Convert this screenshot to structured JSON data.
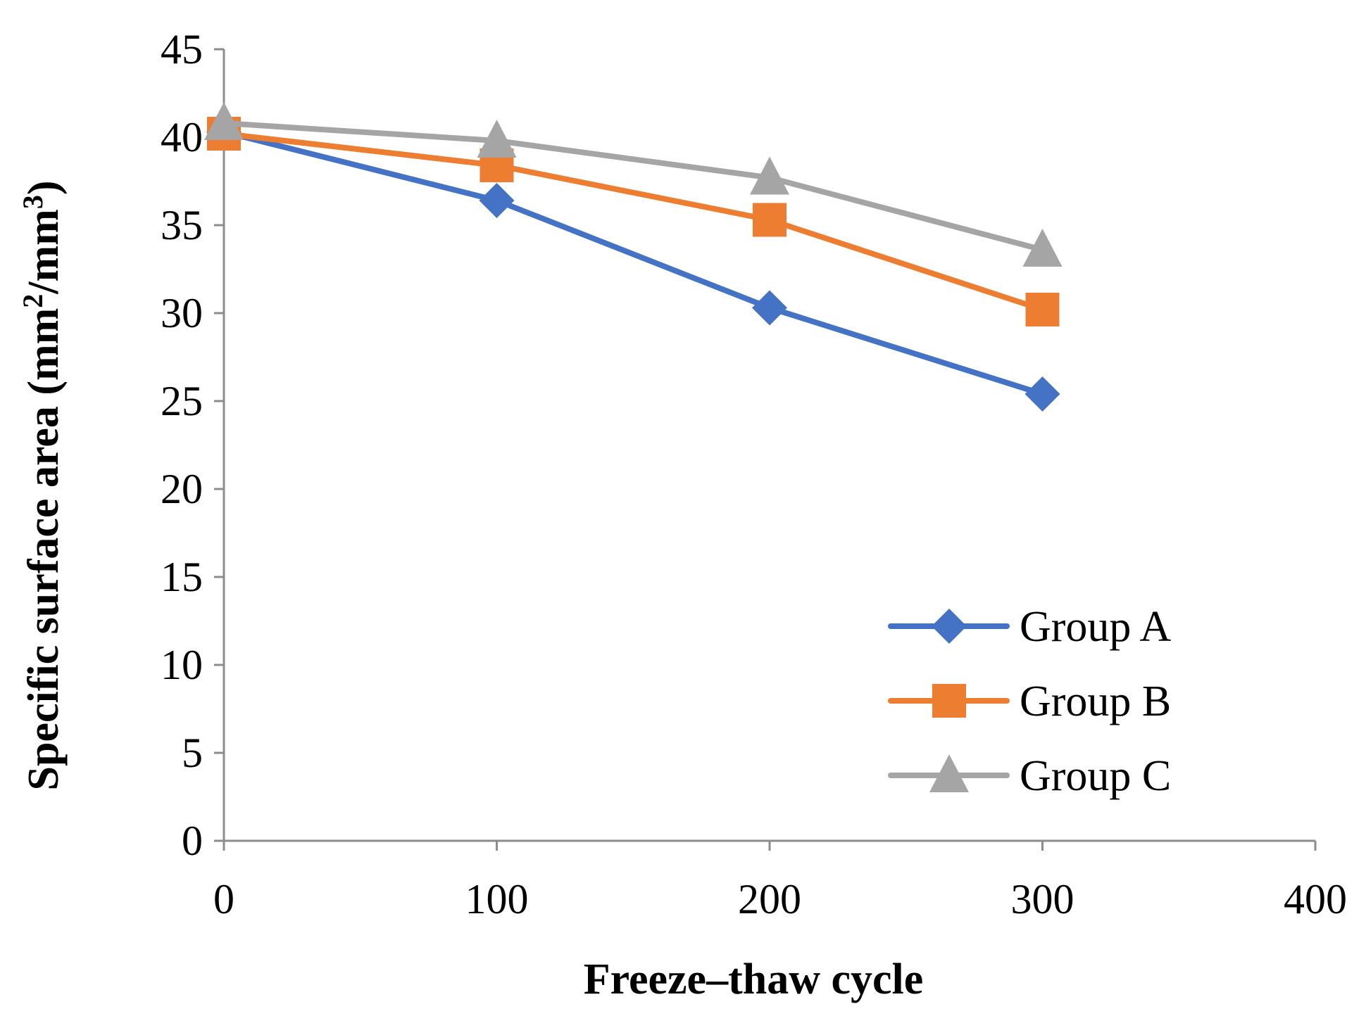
{
  "chart_data": {
    "type": "line",
    "title": "",
    "xlabel": "Freeze–thaw cycle",
    "ylabel_main": "Specific surface area (mm",
    "ylabel_sup1": "2",
    "ylabel_mid": "/mm",
    "ylabel_sup2": "3",
    "ylabel_end": ")",
    "xlim": [
      0,
      400
    ],
    "ylim": [
      0,
      45
    ],
    "xticks": [
      0,
      100,
      200,
      300,
      400
    ],
    "yticks": [
      0,
      5,
      10,
      15,
      20,
      25,
      30,
      35,
      40,
      45
    ],
    "xtick_labels": [
      "0",
      "100",
      "200",
      "300",
      "400"
    ],
    "ytick_labels": [
      "0",
      "5",
      "10",
      "15",
      "20",
      "25",
      "30",
      "35",
      "40",
      "45"
    ],
    "x": [
      0,
      100,
      200,
      300
    ],
    "grid": false,
    "legend_position": "bottom-right",
    "series": [
      {
        "name": "Group A",
        "marker": "diamond",
        "color": "#4472C4",
        "values": [
          40.3,
          36.4,
          30.3,
          25.4
        ]
      },
      {
        "name": "Group B",
        "marker": "square",
        "color": "#ED7D31",
        "values": [
          40.2,
          38.4,
          35.3,
          30.2
        ]
      },
      {
        "name": "Group C",
        "marker": "triangle",
        "color": "#A5A5A5",
        "values": [
          40.8,
          39.8,
          37.7,
          33.6
        ]
      }
    ]
  }
}
